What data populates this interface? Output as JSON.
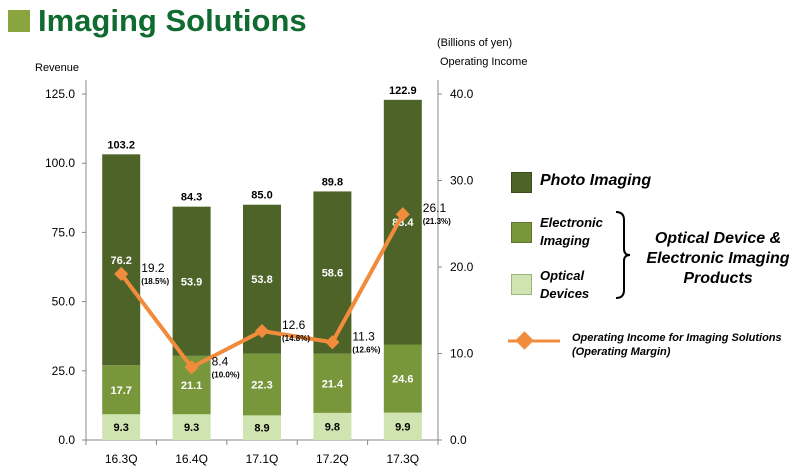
{
  "title": "Imaging Solutions",
  "unit_note": "(Billions of yen)",
  "chart_data": {
    "type": "bar",
    "stacked": true,
    "categories": [
      "16.3Q",
      "16.4Q",
      "17.1Q",
      "17.2Q",
      "17.3Q"
    ],
    "ylabel_left": "Revenue",
    "ylabel_right": "Operating Income",
    "ylim_left": [
      0,
      125
    ],
    "yticks_left": [
      "0.0",
      "25.0",
      "50.0",
      "75.0",
      "100.0",
      "125.0"
    ],
    "ylim_right": [
      0,
      40
    ],
    "yticks_right": [
      "0.0",
      "10.0",
      "20.0",
      "30.0",
      "40.0"
    ],
    "series": [
      {
        "name": "Optical Devices",
        "color": "#cfe4b0",
        "values": [
          9.3,
          9.3,
          8.9,
          9.8,
          9.9
        ]
      },
      {
        "name": "Electronic Imaging",
        "color": "#77973a",
        "values": [
          17.7,
          21.1,
          22.3,
          21.4,
          24.6
        ]
      },
      {
        "name": "Photo Imaging",
        "color": "#4d6327",
        "values": [
          76.2,
          53.9,
          53.8,
          58.6,
          88.4
        ]
      }
    ],
    "totals": [
      103.2,
      84.3,
      85.0,
      89.8,
      122.9
    ],
    "totals_labels": [
      "103.2",
      "84.3",
      "85.0",
      "89.8",
      "122.9"
    ],
    "line": {
      "name": "Operating Income for Imaging Solutions (Operating Margin)",
      "color": "#f08c3c",
      "axis": "right",
      "values": [
        19.2,
        8.4,
        12.6,
        11.3,
        26.1
      ],
      "value_labels": [
        "19.2",
        "8.4",
        "12.6",
        "11.3",
        "26.1"
      ],
      "margins": [
        "(18.5%)",
        "(10.0%)",
        "(14.8%)",
        "(12.6%)",
        "(21.3%)"
      ]
    }
  },
  "legend": {
    "photo_imaging": "Photo Imaging",
    "electronic_imaging_line1": "Electronic",
    "electronic_imaging_line2": "Imaging",
    "optical_devices_line1": "Optical",
    "optical_devices_line2": "Devices",
    "group_line1": "Optical Device &",
    "group_line2": "Electronic Imaging",
    "group_line3": "Products",
    "line_label_line1": "Operating Income for Imaging Solutions",
    "line_label_line2": "(Operating Margin)"
  }
}
